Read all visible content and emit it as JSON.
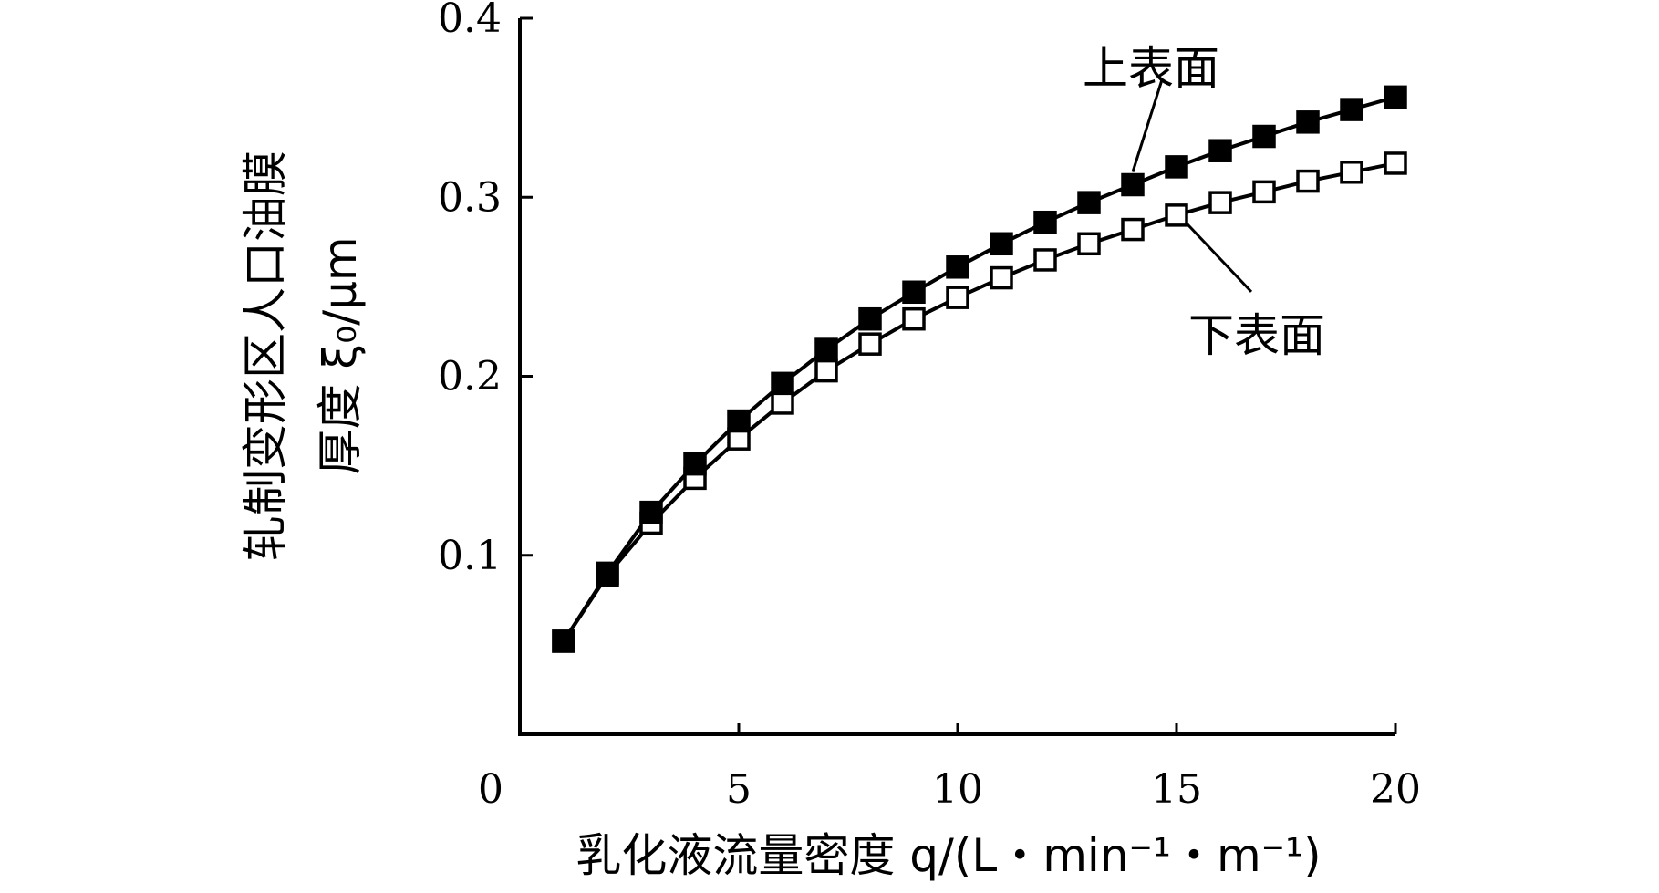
{
  "chart_data": {
    "type": "line",
    "ylabel_line1": "轧制变形区人口油膜",
    "ylabel_line2": "厚度 ξ₀/μm",
    "xlabel": "乳化液流量密度 q/(L・min⁻¹・m⁻¹)",
    "xlim": [
      0,
      20
    ],
    "ylim": [
      0,
      0.4
    ],
    "xticks": [
      "0",
      "5",
      "10",
      "15",
      "20"
    ],
    "yticks": [
      "0.1",
      "0.2",
      "0.3",
      "0.4"
    ],
    "xtick_values": [
      0,
      5,
      10,
      15,
      20
    ],
    "ytick_values": [
      0.1,
      0.2,
      0.3,
      0.4
    ],
    "grid": false,
    "x": [
      1,
      2,
      3,
      4,
      5,
      6,
      7,
      8,
      9,
      10,
      11,
      12,
      13,
      14,
      15,
      16,
      17,
      18,
      19,
      20
    ],
    "series": [
      {
        "name": "上表面",
        "marker": "filled-square",
        "values": [
          0.052,
          0.09,
          0.124,
          0.151,
          0.175,
          0.196,
          0.215,
          0.232,
          0.247,
          0.261,
          0.274,
          0.286,
          0.297,
          0.307,
          0.317,
          0.326,
          0.334,
          0.342,
          0.349,
          0.356
        ]
      },
      {
        "name": "下表面",
        "marker": "open-square",
        "values": [
          0.052,
          0.089,
          0.118,
          0.143,
          0.165,
          0.185,
          0.203,
          0.218,
          0.232,
          0.244,
          0.255,
          0.265,
          0.274,
          0.282,
          0.29,
          0.297,
          0.303,
          0.309,
          0.314,
          0.319
        ]
      }
    ],
    "annotations": [
      {
        "text": "上表面",
        "series": 0,
        "at_x": 14
      },
      {
        "text": "下表面",
        "series": 1,
        "at_x": 15
      }
    ],
    "colors": {
      "line": "#000000",
      "marker_fill_filled": "#000000",
      "marker_fill_open": "#ffffff"
    }
  }
}
